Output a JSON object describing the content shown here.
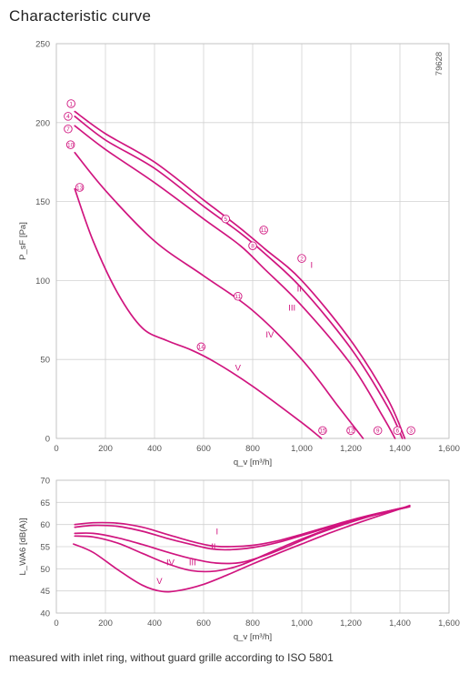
{
  "title": "Characteristic curve",
  "footnote": "measured with inlet ring, without guard grille according to ISO 5801",
  "colors": {
    "curve": "#d0157f",
    "grid": "#d2d2d2",
    "text": "#333333"
  },
  "chart_data": [
    {
      "type": "line",
      "code": "79628",
      "xlabel": "q_v [m³/h]",
      "ylabel": "P_sF [Pa]",
      "xlim": [
        0,
        1600
      ],
      "ylim": [
        0,
        250
      ],
      "xticks": [
        0,
        200,
        400,
        600,
        800,
        1000,
        1200,
        1400,
        1600
      ],
      "xtick_labels": [
        "0",
        "200",
        "400",
        "600",
        "800",
        "1,000",
        "1,200",
        "1,400",
        "1,600"
      ],
      "yticks": [
        0,
        50,
        100,
        150,
        200,
        250
      ],
      "grid": true,
      "series": [
        {
          "x": [
            75,
            200,
            400,
            600,
            750,
            850,
            1000,
            1200,
            1350,
            1420
          ],
          "y": [
            207,
            193,
            175,
            151,
            133,
            120,
            100,
            62,
            25,
            0
          ]
        },
        {
          "x": [
            75,
            200,
            400,
            600,
            750,
            850,
            1000,
            1200,
            1350,
            1410
          ],
          "y": [
            204,
            189,
            171,
            147,
            130,
            117,
            95,
            57,
            20,
            0
          ]
        },
        {
          "x": [
            75,
            200,
            400,
            600,
            750,
            850,
            1000,
            1200,
            1330,
            1380
          ],
          "y": [
            198,
            183,
            162,
            139,
            122,
            107,
            84,
            47,
            14,
            0
          ]
        },
        {
          "x": [
            75,
            200,
            400,
            600,
            800,
            1000,
            1150,
            1250
          ],
          "y": [
            181,
            157,
            125,
            103,
            81,
            50,
            20,
            0
          ]
        },
        {
          "x": [
            75,
            150,
            250,
            350,
            450,
            550,
            650,
            800,
            1000,
            1080
          ],
          "y": [
            158,
            125,
            92,
            70,
            62,
            56,
            48,
            33,
            10,
            0
          ]
        }
      ],
      "series_labels": [
        {
          "text": "I",
          "x": 1040,
          "y": 108
        },
        {
          "text": "II",
          "x": 990,
          "y": 93
        },
        {
          "text": "III",
          "x": 960,
          "y": 81
        },
        {
          "text": "IV",
          "x": 870,
          "y": 64
        },
        {
          "text": "V",
          "x": 740,
          "y": 43
        }
      ],
      "markers": [
        {
          "text": "1",
          "x": 60,
          "y": 212
        },
        {
          "text": "4",
          "x": 48,
          "y": 204
        },
        {
          "text": "7",
          "x": 48,
          "y": 196
        },
        {
          "text": "10",
          "x": 58,
          "y": 186
        },
        {
          "text": "13",
          "x": 95,
          "y": 159
        },
        {
          "text": "11",
          "x": 845,
          "y": 132
        },
        {
          "text": "5",
          "x": 690,
          "y": 139
        },
        {
          "text": "2",
          "x": 1000,
          "y": 114
        },
        {
          "text": "8",
          "x": 800,
          "y": 122
        },
        {
          "text": "11",
          "x": 740,
          "y": 90
        },
        {
          "text": "14",
          "x": 590,
          "y": 58
        },
        {
          "text": "15",
          "x": 1085,
          "y": 5
        },
        {
          "text": "12",
          "x": 1200,
          "y": 5
        },
        {
          "text": "9",
          "x": 1310,
          "y": 5
        },
        {
          "text": "6",
          "x": 1390,
          "y": 5
        },
        {
          "text": "3",
          "x": 1445,
          "y": 5
        }
      ]
    },
    {
      "type": "line",
      "xlabel": "q_v [m³/h]",
      "ylabel": "L_WA6 [dB(A)]",
      "xlim": [
        0,
        1600
      ],
      "ylim": [
        40,
        70
      ],
      "xticks": [
        0,
        200,
        400,
        600,
        800,
        1000,
        1200,
        1400,
        1600
      ],
      "xtick_labels": [
        "0",
        "200",
        "400",
        "600",
        "800",
        "1,000",
        "1,200",
        "1,400",
        "1,600"
      ],
      "yticks": [
        40,
        45,
        50,
        55,
        60,
        65,
        70
      ],
      "grid": true,
      "series": [
        {
          "x": [
            75,
            150,
            250,
            350,
            450,
            550,
            630,
            700,
            800,
            900,
            1000,
            1100,
            1200,
            1300,
            1400,
            1440
          ],
          "y": [
            60.0,
            60.4,
            60.3,
            59.4,
            57.8,
            56.2,
            55.2,
            55.0,
            55.3,
            56.3,
            57.8,
            59.4,
            61.0,
            62.4,
            63.6,
            64.2
          ]
        },
        {
          "x": [
            75,
            150,
            250,
            350,
            450,
            550,
            630,
            700,
            800,
            900,
            1000,
            1100,
            1200,
            1300,
            1400,
            1440
          ],
          "y": [
            59.4,
            59.8,
            59.6,
            58.5,
            56.9,
            55.5,
            54.5,
            54.3,
            54.8,
            55.9,
            57.5,
            59.2,
            60.8,
            62.2,
            63.5,
            64.0
          ]
        },
        {
          "x": [
            75,
            150,
            250,
            350,
            450,
            550,
            650,
            750,
            850,
            950,
            1050,
            1150,
            1250,
            1350,
            1430
          ],
          "y": [
            58.0,
            58.0,
            57.0,
            55.5,
            53.8,
            52.3,
            51.3,
            51.4,
            53.0,
            55.2,
            57.6,
            59.6,
            61.4,
            62.9,
            63.9
          ]
        },
        {
          "x": [
            75,
            150,
            250,
            350,
            450,
            550,
            650,
            750,
            850,
            950,
            1050,
            1150,
            1250,
            1350,
            1430
          ],
          "y": [
            57.4,
            57.2,
            55.8,
            53.5,
            51.2,
            49.6,
            49.5,
            50.8,
            53.2,
            55.6,
            57.8,
            59.8,
            61.6,
            63.0,
            64.0
          ]
        },
        {
          "x": [
            70,
            150,
            250,
            350,
            430,
            500,
            600,
            700,
            800,
            900,
            1000,
            1100,
            1200,
            1300,
            1400,
            1440
          ],
          "y": [
            55.6,
            53.7,
            49.8,
            46.3,
            44.9,
            45.1,
            46.5,
            48.7,
            51.1,
            53.4,
            55.6,
            57.8,
            59.8,
            61.7,
            63.5,
            64.3
          ]
        }
      ],
      "series_labels": [
        {
          "text": "I",
          "x": 655,
          "y": 57.8
        },
        {
          "text": "II",
          "x": 640,
          "y": 54.4
        },
        {
          "text": "III",
          "x": 555,
          "y": 50.8
        },
        {
          "text": "IV",
          "x": 465,
          "y": 50.8
        },
        {
          "text": "V",
          "x": 420,
          "y": 46.6
        }
      ]
    }
  ]
}
